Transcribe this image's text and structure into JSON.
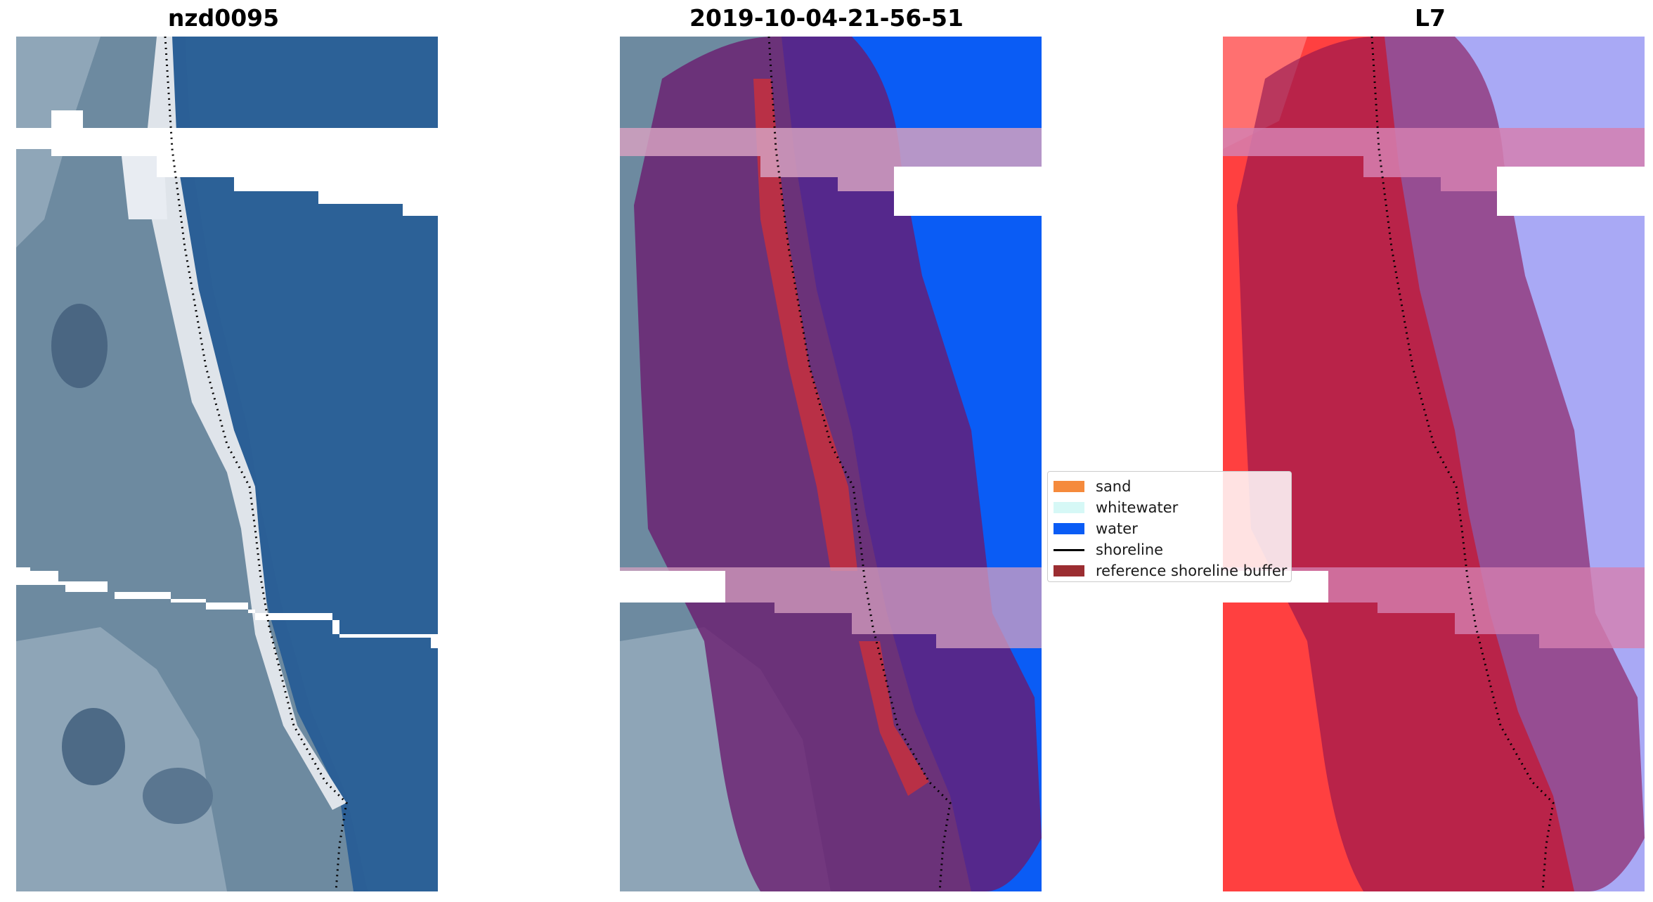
{
  "panels": [
    {
      "title": "nzd0095"
    },
    {
      "title": "2019-10-04-21-56-51"
    },
    {
      "title": "L7"
    }
  ],
  "legend": {
    "items": [
      {
        "label": "sand",
        "color": "#f58a3c",
        "kind": "patch"
      },
      {
        "label": "whitewater",
        "color": "#d6f8f6",
        "kind": "patch"
      },
      {
        "label": "water",
        "color": "#0a5cf5",
        "kind": "patch"
      },
      {
        "label": "shoreline",
        "color": "#000000",
        "kind": "line"
      },
      {
        "label": "reference shoreline buffer",
        "color": "#9b2d31",
        "kind": "patch"
      }
    ]
  },
  "colors": {
    "ocean_rgb": "#2b5f96",
    "land_rgb": "#6d8aa0",
    "beach_rgb": "#dfe4ea",
    "water_class": "#0a5cf5",
    "buffer_overlay": "#6a1a6e",
    "ndwi_land": "#ff4040",
    "ndwi_water": "#a9a9f5"
  }
}
